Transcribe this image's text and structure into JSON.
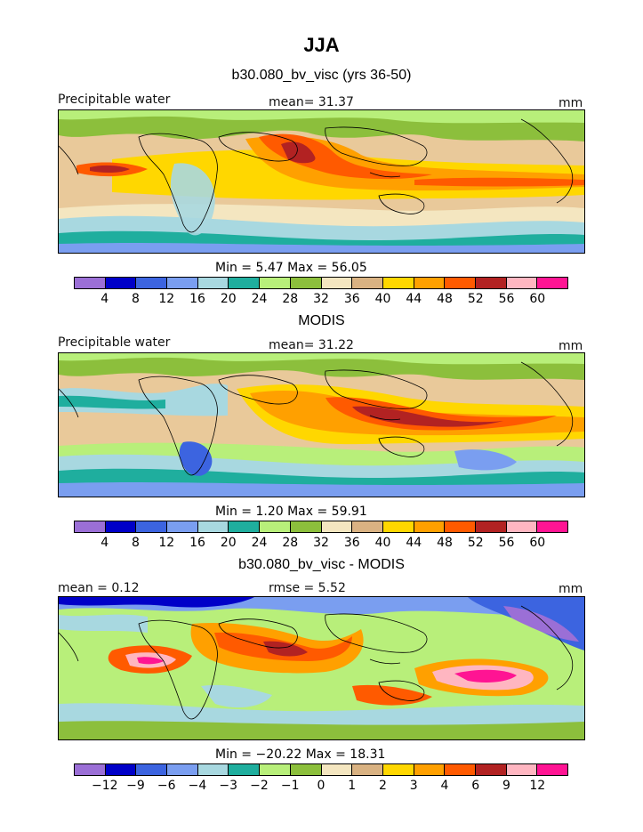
{
  "header": {
    "season": "JJA",
    "model_title": "b30.080_bv_visc (yrs 36-50)"
  },
  "panels": [
    {
      "left_label": "Precipitable water",
      "center_label": "mean=  31.37",
      "units": "mm",
      "minmax": "Min =   5.47 Max =  56.05",
      "ticks": [
        "4",
        "8",
        "12",
        "16",
        "20",
        "24",
        "28",
        "32",
        "36",
        "40",
        "44",
        "48",
        "52",
        "56",
        "60"
      ]
    },
    {
      "title": "MODIS",
      "left_label": "Precipitable water",
      "center_label": "mean=  31.22",
      "units": "mm",
      "minmax": "Min =   1.20 Max =  59.91",
      "ticks": [
        "4",
        "8",
        "12",
        "16",
        "20",
        "24",
        "28",
        "32",
        "36",
        "40",
        "44",
        "48",
        "52",
        "56",
        "60"
      ]
    },
    {
      "title": "b30.080_bv_visc - MODIS",
      "left_label": "mean =   0.12",
      "center_label": "rmse =   5.52",
      "units": "mm",
      "minmax": "Min = −20.22 Max =  18.31",
      "ticks": [
        "−12",
        "−9",
        "−6",
        "−4",
        "−3",
        "−2",
        "−1",
        "0",
        "1",
        "2",
        "3",
        "4",
        "6",
        "9",
        "12"
      ]
    }
  ],
  "colorbar": {
    "colors": [
      "#9b6fd6",
      "#0000c8",
      "#3c64e0",
      "#7a9ef0",
      "#a8d8e0",
      "#1fae9e",
      "#b8ef7a",
      "#8cbf3c",
      "#f4e6c0",
      "#d9b282",
      "#ffd700",
      "#ffa000",
      "#ff5a00",
      "#b22222",
      "#ffb6c1",
      "#ff1493"
    ]
  }
}
